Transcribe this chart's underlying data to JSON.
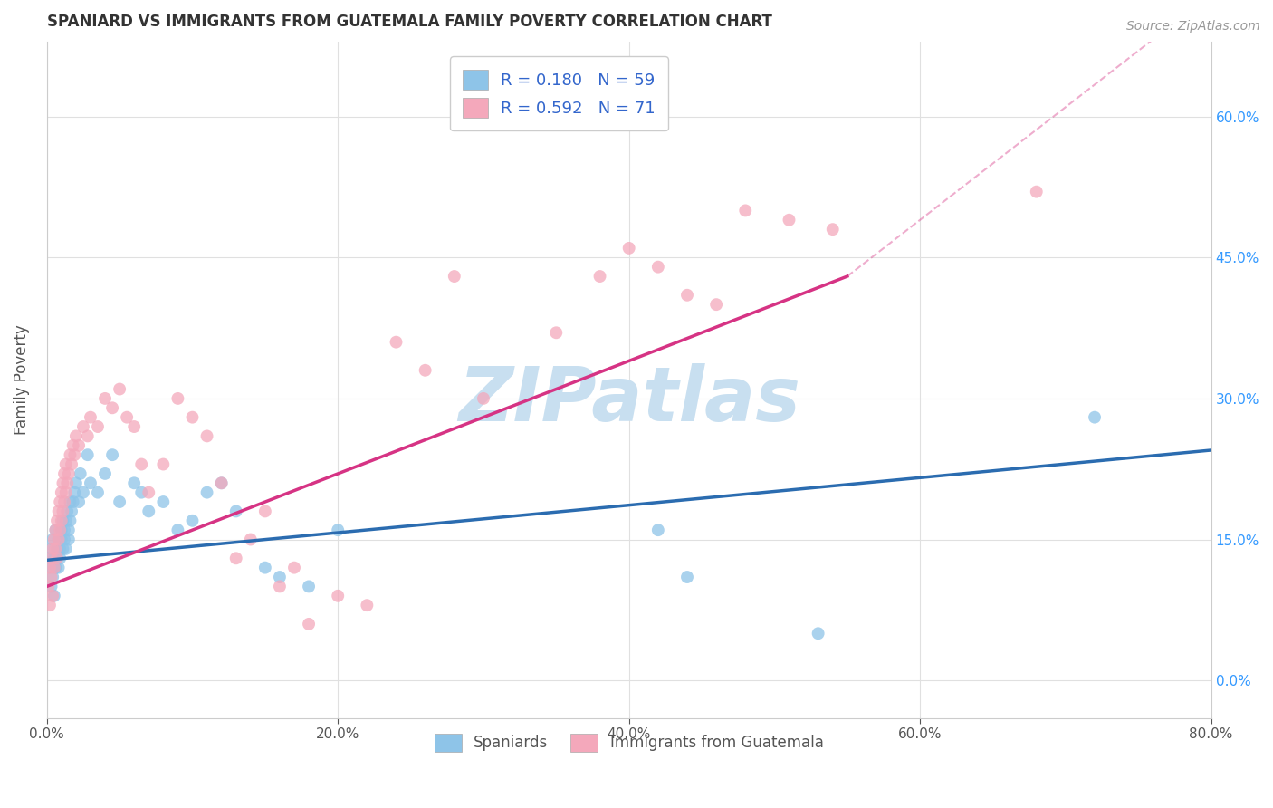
{
  "title": "SPANIARD VS IMMIGRANTS FROM GUATEMALA FAMILY POVERTY CORRELATION CHART",
  "source": "Source: ZipAtlas.com",
  "ylabel_label": "Family Poverty",
  "legend_label1": "Spaniards",
  "legend_label2": "Immigrants from Guatemala",
  "R1": 0.18,
  "N1": 59,
  "R2": 0.592,
  "N2": 71,
  "color1": "#8ec4e8",
  "color2": "#f4a8bb",
  "line_color1": "#2b6cb0",
  "line_color2": "#d63384",
  "watermark": "ZIPatlas",
  "scatter1_x": [
    0.001,
    0.002,
    0.003,
    0.003,
    0.004,
    0.004,
    0.005,
    0.005,
    0.006,
    0.006,
    0.007,
    0.007,
    0.008,
    0.008,
    0.009,
    0.009,
    0.01,
    0.01,
    0.011,
    0.011,
    0.012,
    0.012,
    0.013,
    0.013,
    0.014,
    0.015,
    0.015,
    0.016,
    0.016,
    0.017,
    0.018,
    0.019,
    0.02,
    0.022,
    0.023,
    0.025,
    0.028,
    0.03,
    0.035,
    0.04,
    0.045,
    0.05,
    0.06,
    0.065,
    0.07,
    0.08,
    0.09,
    0.1,
    0.11,
    0.12,
    0.13,
    0.15,
    0.16,
    0.18,
    0.2,
    0.42,
    0.44,
    0.53,
    0.72
  ],
  "scatter1_y": [
    0.13,
    0.12,
    0.1,
    0.14,
    0.11,
    0.15,
    0.13,
    0.09,
    0.12,
    0.16,
    0.14,
    0.13,
    0.12,
    0.15,
    0.14,
    0.13,
    0.15,
    0.16,
    0.14,
    0.17,
    0.15,
    0.16,
    0.17,
    0.14,
    0.18,
    0.15,
    0.16,
    0.17,
    0.19,
    0.18,
    0.19,
    0.2,
    0.21,
    0.19,
    0.22,
    0.2,
    0.24,
    0.21,
    0.2,
    0.22,
    0.24,
    0.19,
    0.21,
    0.2,
    0.18,
    0.19,
    0.16,
    0.17,
    0.2,
    0.21,
    0.18,
    0.12,
    0.11,
    0.1,
    0.16,
    0.16,
    0.11,
    0.05,
    0.28
  ],
  "scatter2_x": [
    0.001,
    0.002,
    0.002,
    0.003,
    0.003,
    0.004,
    0.004,
    0.005,
    0.005,
    0.006,
    0.006,
    0.007,
    0.007,
    0.008,
    0.008,
    0.009,
    0.009,
    0.01,
    0.01,
    0.011,
    0.011,
    0.012,
    0.012,
    0.013,
    0.013,
    0.014,
    0.015,
    0.016,
    0.017,
    0.018,
    0.019,
    0.02,
    0.022,
    0.025,
    0.028,
    0.03,
    0.035,
    0.04,
    0.045,
    0.05,
    0.055,
    0.06,
    0.065,
    0.07,
    0.08,
    0.09,
    0.1,
    0.11,
    0.12,
    0.13,
    0.14,
    0.15,
    0.16,
    0.17,
    0.18,
    0.2,
    0.22,
    0.24,
    0.26,
    0.28,
    0.3,
    0.35,
    0.38,
    0.4,
    0.42,
    0.44,
    0.46,
    0.48,
    0.51,
    0.54,
    0.68
  ],
  "scatter2_y": [
    0.1,
    0.08,
    0.12,
    0.11,
    0.13,
    0.09,
    0.14,
    0.12,
    0.15,
    0.14,
    0.16,
    0.13,
    0.17,
    0.15,
    0.18,
    0.16,
    0.19,
    0.17,
    0.2,
    0.18,
    0.21,
    0.19,
    0.22,
    0.2,
    0.23,
    0.21,
    0.22,
    0.24,
    0.23,
    0.25,
    0.24,
    0.26,
    0.25,
    0.27,
    0.26,
    0.28,
    0.27,
    0.3,
    0.29,
    0.31,
    0.28,
    0.27,
    0.23,
    0.2,
    0.23,
    0.3,
    0.28,
    0.26,
    0.21,
    0.13,
    0.15,
    0.18,
    0.1,
    0.12,
    0.06,
    0.09,
    0.08,
    0.36,
    0.33,
    0.43,
    0.3,
    0.37,
    0.43,
    0.46,
    0.44,
    0.41,
    0.4,
    0.5,
    0.49,
    0.48,
    0.52
  ],
  "xlim": [
    0.0,
    0.8
  ],
  "ylim": [
    -0.04,
    0.68
  ],
  "xtick_vals": [
    0.0,
    0.2,
    0.4,
    0.6,
    0.8
  ],
  "xtick_labels": [
    "0.0%",
    "20.0%",
    "40.0%",
    "60.0%",
    "80.0%"
  ],
  "ytick_vals": [
    0.0,
    0.15,
    0.3,
    0.45,
    0.6
  ],
  "ytick_labels": [
    "0.0%",
    "15.0%",
    "30.0%",
    "45.0%",
    "60.0%"
  ],
  "title_fontsize": 12,
  "source_fontsize": 10,
  "watermark_color": "#c8dff0",
  "watermark_fontsize": 60,
  "background_color": "#ffffff",
  "grid_color": "#e0e0e0",
  "line1_x_start": 0.0,
  "line1_x_end": 0.8,
  "line1_y_start": 0.128,
  "line1_y_end": 0.245,
  "line2_x_start": 0.0,
  "line2_x_end": 0.55,
  "line2_y_start": 0.1,
  "line2_y_end": 0.43,
  "line2_dash_x_end": 0.8,
  "line2_dash_y_end": 0.73
}
